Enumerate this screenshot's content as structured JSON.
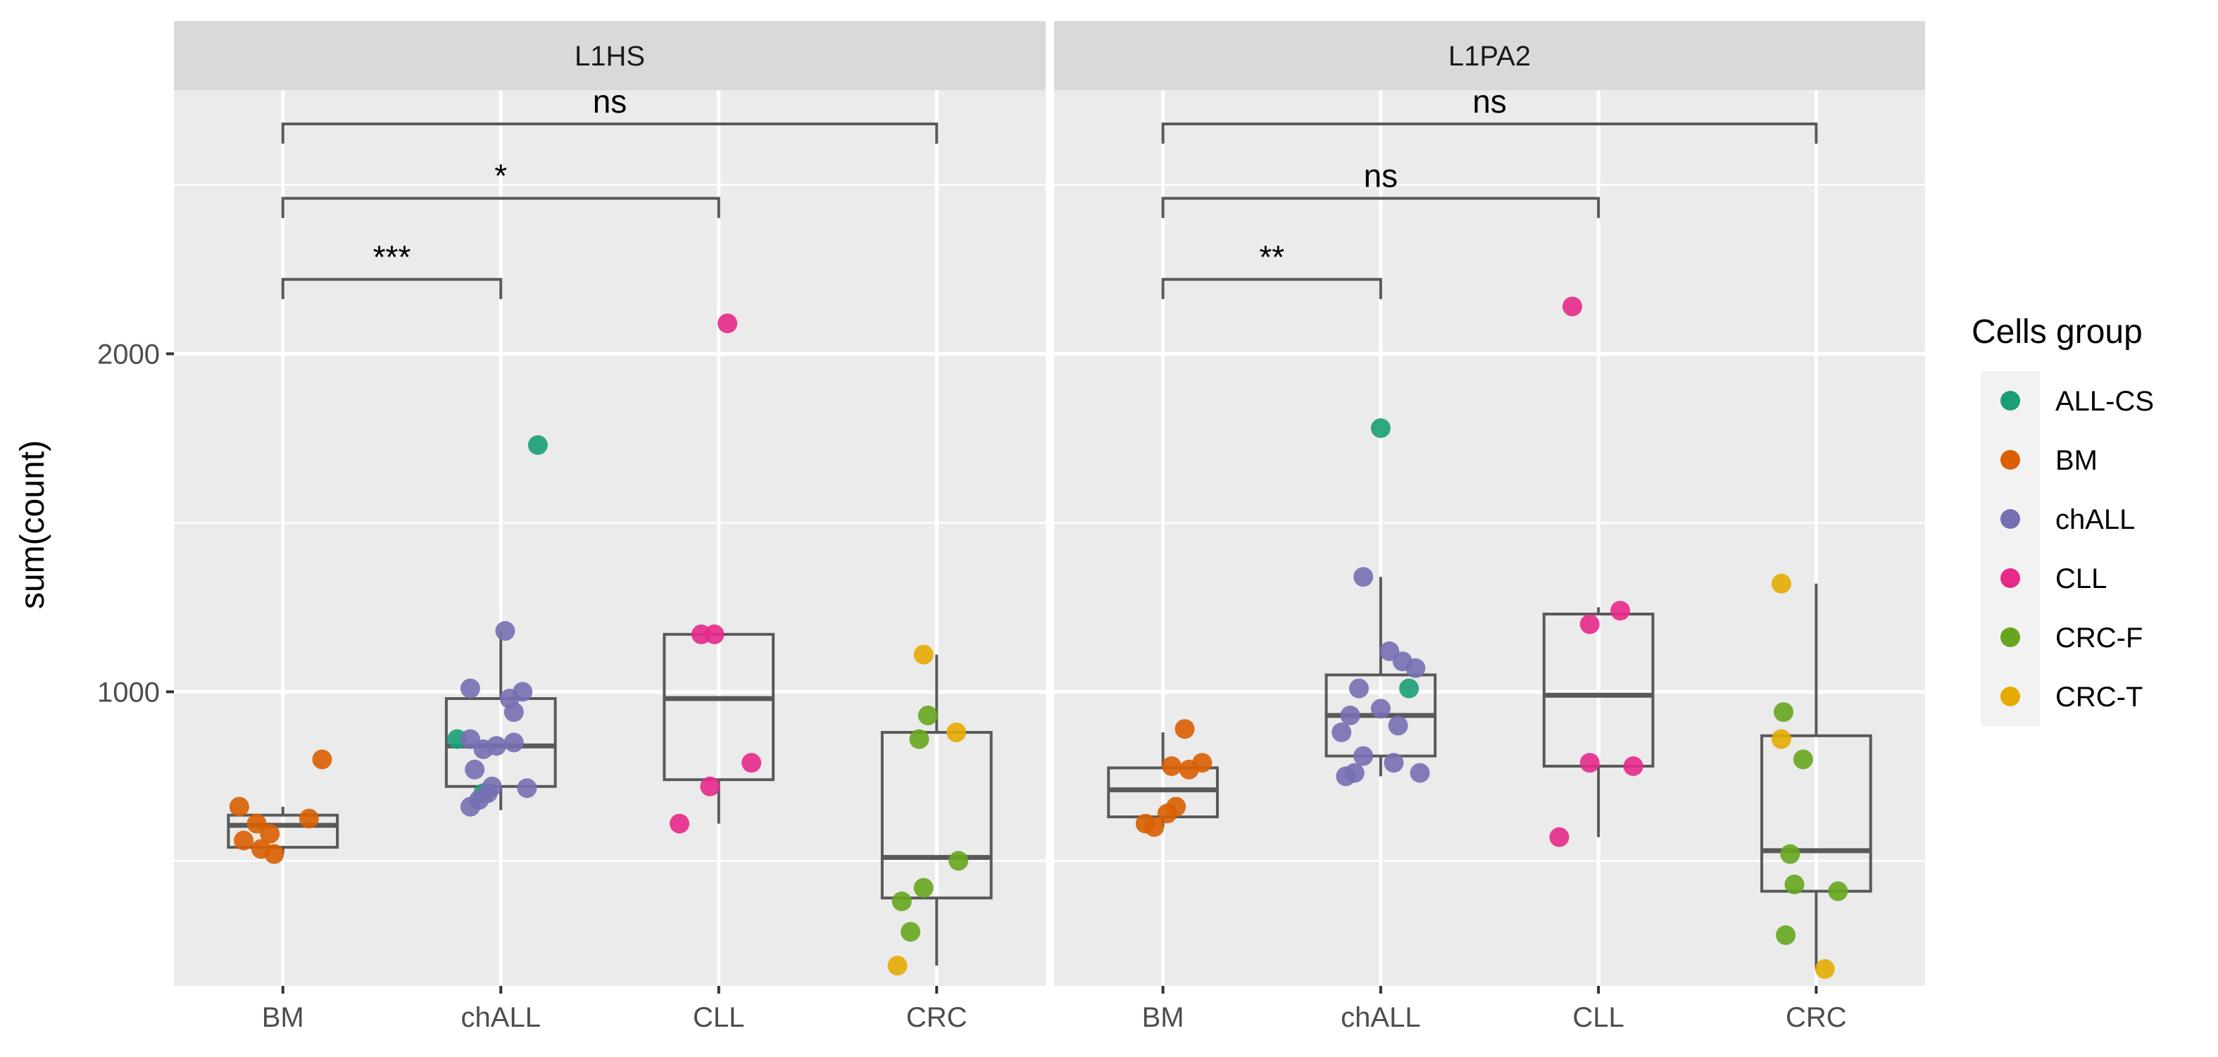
{
  "chart_data": {
    "type": "boxplot",
    "ylabel": "sum(count)",
    "y_ticks": [
      1000,
      2000
    ],
    "y_minor_ticks": [
      500,
      1500,
      2500
    ],
    "ylim": [
      130,
      2780
    ],
    "categories": [
      "BM",
      "chALL",
      "CLL",
      "CRC"
    ],
    "legend": {
      "title": "Cells group",
      "placement": "right",
      "entries": [
        {
          "label": "ALL-CS",
          "color": "#1B9E77"
        },
        {
          "label": "BM",
          "color": "#D95F02"
        },
        {
          "label": "chALL",
          "color": "#7570B3"
        },
        {
          "label": "CLL",
          "color": "#E7298A"
        },
        {
          "label": "CRC-F",
          "color": "#66A61E"
        },
        {
          "label": "CRC-T",
          "color": "#E6AB02"
        }
      ]
    },
    "panels": [
      {
        "title": "L1HS",
        "boxes": [
          {
            "category": "BM",
            "q1": 540,
            "median": 605,
            "q3": 635,
            "whisker_low": 520,
            "whisker_high": 660
          },
          {
            "category": "chALL",
            "q1": 720,
            "median": 840,
            "q3": 980,
            "whisker_low": 650,
            "whisker_high": 1180
          },
          {
            "category": "CLL",
            "q1": 740,
            "median": 980,
            "q3": 1170,
            "whisker_low": 610,
            "whisker_high": 1170
          },
          {
            "category": "CRC",
            "q1": 390,
            "median": 510,
            "q3": 880,
            "whisker_low": 190,
            "whisker_high": 1110
          }
        ],
        "points": [
          {
            "category": "BM",
            "group": "BM",
            "jitter": 0.18,
            "y": 800
          },
          {
            "category": "BM",
            "group": "BM",
            "jitter": -0.2,
            "y": 660
          },
          {
            "category": "BM",
            "group": "BM",
            "jitter": 0.12,
            "y": 625
          },
          {
            "category": "BM",
            "group": "BM",
            "jitter": -0.12,
            "y": 610
          },
          {
            "category": "BM",
            "group": "BM",
            "jitter": -0.06,
            "y": 580
          },
          {
            "category": "BM",
            "group": "BM",
            "jitter": -0.18,
            "y": 560
          },
          {
            "category": "BM",
            "group": "BM",
            "jitter": -0.1,
            "y": 535
          },
          {
            "category": "BM",
            "group": "BM",
            "jitter": -0.04,
            "y": 520
          },
          {
            "category": "chALL",
            "group": "ALL-CS",
            "jitter": 0.17,
            "y": 1730
          },
          {
            "category": "chALL",
            "group": "ALL-CS",
            "jitter": -0.2,
            "y": 860
          },
          {
            "category": "chALL",
            "group": "ALL-CS",
            "jitter": -0.08,
            "y": 700
          },
          {
            "category": "chALL",
            "group": "chALL",
            "jitter": 0.02,
            "y": 1180
          },
          {
            "category": "chALL",
            "group": "chALL",
            "jitter": -0.14,
            "y": 1010
          },
          {
            "category": "chALL",
            "group": "chALL",
            "jitter": 0.1,
            "y": 1000
          },
          {
            "category": "chALL",
            "group": "chALL",
            "jitter": 0.04,
            "y": 980
          },
          {
            "category": "chALL",
            "group": "chALL",
            "jitter": 0.06,
            "y": 940
          },
          {
            "category": "chALL",
            "group": "chALL",
            "jitter": -0.14,
            "y": 860
          },
          {
            "category": "chALL",
            "group": "chALL",
            "jitter": 0.06,
            "y": 850
          },
          {
            "category": "chALL",
            "group": "chALL",
            "jitter": -0.02,
            "y": 840
          },
          {
            "category": "chALL",
            "group": "chALL",
            "jitter": -0.08,
            "y": 830
          },
          {
            "category": "chALL",
            "group": "chALL",
            "jitter": -0.12,
            "y": 770
          },
          {
            "category": "chALL",
            "group": "chALL",
            "jitter": -0.04,
            "y": 720
          },
          {
            "category": "chALL",
            "group": "chALL",
            "jitter": 0.12,
            "y": 715
          },
          {
            "category": "chALL",
            "group": "chALL",
            "jitter": -0.06,
            "y": 700
          },
          {
            "category": "chALL",
            "group": "chALL",
            "jitter": -0.1,
            "y": 680
          },
          {
            "category": "chALL",
            "group": "chALL",
            "jitter": -0.14,
            "y": 660
          },
          {
            "category": "CLL",
            "group": "CLL",
            "jitter": 0.04,
            "y": 2090
          },
          {
            "category": "CLL",
            "group": "CLL",
            "jitter": -0.08,
            "y": 1170
          },
          {
            "category": "CLL",
            "group": "CLL",
            "jitter": -0.02,
            "y": 1170
          },
          {
            "category": "CLL",
            "group": "CLL",
            "jitter": 0.15,
            "y": 790
          },
          {
            "category": "CLL",
            "group": "CLL",
            "jitter": -0.04,
            "y": 720
          },
          {
            "category": "CLL",
            "group": "CLL",
            "jitter": -0.18,
            "y": 610
          },
          {
            "category": "CRC",
            "group": "CRC-T",
            "jitter": -0.06,
            "y": 1110
          },
          {
            "category": "CRC",
            "group": "CRC-T",
            "jitter": 0.09,
            "y": 880
          },
          {
            "category": "CRC",
            "group": "CRC-T",
            "jitter": -0.18,
            "y": 190
          },
          {
            "category": "CRC",
            "group": "CRC-F",
            "jitter": -0.04,
            "y": 930
          },
          {
            "category": "CRC",
            "group": "CRC-F",
            "jitter": -0.08,
            "y": 860
          },
          {
            "category": "CRC",
            "group": "CRC-F",
            "jitter": 0.1,
            "y": 500
          },
          {
            "category": "CRC",
            "group": "CRC-F",
            "jitter": -0.06,
            "y": 420
          },
          {
            "category": "CRC",
            "group": "CRC-F",
            "jitter": -0.16,
            "y": 380
          },
          {
            "category": "CRC",
            "group": "CRC-F",
            "jitter": -0.12,
            "y": 290
          }
        ],
        "comparisons": [
          {
            "from": "BM",
            "to": "chALL",
            "label": "***",
            "y": 2220
          },
          {
            "from": "BM",
            "to": "CLL",
            "label": "*",
            "y": 2460
          },
          {
            "from": "BM",
            "to": "CRC",
            "label": "ns",
            "y": 2680
          }
        ]
      },
      {
        "title": "L1PA2",
        "boxes": [
          {
            "category": "BM",
            "q1": 630,
            "median": 710,
            "q3": 775,
            "whisker_low": 600,
            "whisker_high": 880
          },
          {
            "category": "chALL",
            "q1": 810,
            "median": 930,
            "q3": 1050,
            "whisker_low": 750,
            "whisker_high": 1340
          },
          {
            "category": "CLL",
            "q1": 780,
            "median": 990,
            "q3": 1230,
            "whisker_low": 570,
            "whisker_high": 1250
          },
          {
            "category": "CRC",
            "q1": 410,
            "median": 530,
            "q3": 870,
            "whisker_low": 180,
            "whisker_high": 1320
          }
        ],
        "points": [
          {
            "category": "BM",
            "group": "BM",
            "jitter": 0.1,
            "y": 890
          },
          {
            "category": "BM",
            "group": "BM",
            "jitter": 0.18,
            "y": 790
          },
          {
            "category": "BM",
            "group": "BM",
            "jitter": 0.04,
            "y": 780
          },
          {
            "category": "BM",
            "group": "BM",
            "jitter": 0.12,
            "y": 770
          },
          {
            "category": "BM",
            "group": "BM",
            "jitter": 0.06,
            "y": 660
          },
          {
            "category": "BM",
            "group": "BM",
            "jitter": 0.02,
            "y": 640
          },
          {
            "category": "BM",
            "group": "BM",
            "jitter": -0.08,
            "y": 610
          },
          {
            "category": "BM",
            "group": "BM",
            "jitter": -0.04,
            "y": 600
          },
          {
            "category": "chALL",
            "group": "ALL-CS",
            "jitter": 0.0,
            "y": 1780
          },
          {
            "category": "chALL",
            "group": "ALL-CS",
            "jitter": 0.13,
            "y": 1010
          },
          {
            "category": "chALL",
            "group": "chALL",
            "jitter": -0.08,
            "y": 1340
          },
          {
            "category": "chALL",
            "group": "chALL",
            "jitter": 0.04,
            "y": 1120
          },
          {
            "category": "chALL",
            "group": "chALL",
            "jitter": 0.1,
            "y": 1090
          },
          {
            "category": "chALL",
            "group": "chALL",
            "jitter": 0.16,
            "y": 1070
          },
          {
            "category": "chALL",
            "group": "chALL",
            "jitter": -0.1,
            "y": 1010
          },
          {
            "category": "chALL",
            "group": "chALL",
            "jitter": 0.0,
            "y": 950
          },
          {
            "category": "chALL",
            "group": "chALL",
            "jitter": -0.14,
            "y": 930
          },
          {
            "category": "chALL",
            "group": "chALL",
            "jitter": 0.08,
            "y": 900
          },
          {
            "category": "chALL",
            "group": "chALL",
            "jitter": -0.18,
            "y": 880
          },
          {
            "category": "chALL",
            "group": "chALL",
            "jitter": -0.08,
            "y": 810
          },
          {
            "category": "chALL",
            "group": "chALL",
            "jitter": 0.06,
            "y": 790
          },
          {
            "category": "chALL",
            "group": "chALL",
            "jitter": -0.12,
            "y": 760
          },
          {
            "category": "chALL",
            "group": "chALL",
            "jitter": 0.18,
            "y": 760
          },
          {
            "category": "chALL",
            "group": "chALL",
            "jitter": -0.16,
            "y": 750
          },
          {
            "category": "CLL",
            "group": "CLL",
            "jitter": -0.12,
            "y": 2140
          },
          {
            "category": "CLL",
            "group": "CLL",
            "jitter": 0.1,
            "y": 1240
          },
          {
            "category": "CLL",
            "group": "CLL",
            "jitter": -0.04,
            "y": 1200
          },
          {
            "category": "CLL",
            "group": "CLL",
            "jitter": -0.04,
            "y": 790
          },
          {
            "category": "CLL",
            "group": "CLL",
            "jitter": 0.16,
            "y": 780
          },
          {
            "category": "CLL",
            "group": "CLL",
            "jitter": -0.18,
            "y": 570
          },
          {
            "category": "CRC",
            "group": "CRC-T",
            "jitter": -0.16,
            "y": 1320
          },
          {
            "category": "CRC",
            "group": "CRC-T",
            "jitter": -0.16,
            "y": 860
          },
          {
            "category": "CRC",
            "group": "CRC-T",
            "jitter": 0.04,
            "y": 180
          },
          {
            "category": "CRC",
            "group": "CRC-F",
            "jitter": -0.15,
            "y": 940
          },
          {
            "category": "CRC",
            "group": "CRC-F",
            "jitter": -0.06,
            "y": 800
          },
          {
            "category": "CRC",
            "group": "CRC-F",
            "jitter": -0.12,
            "y": 520
          },
          {
            "category": "CRC",
            "group": "CRC-F",
            "jitter": -0.1,
            "y": 430
          },
          {
            "category": "CRC",
            "group": "CRC-F",
            "jitter": 0.1,
            "y": 410
          },
          {
            "category": "CRC",
            "group": "CRC-F",
            "jitter": -0.14,
            "y": 280
          }
        ],
        "comparisons": [
          {
            "from": "BM",
            "to": "chALL",
            "label": "**",
            "y": 2220
          },
          {
            "from": "BM",
            "to": "CLL",
            "label": "ns",
            "y": 2460
          },
          {
            "from": "BM",
            "to": "CRC",
            "label": "ns",
            "y": 2680
          }
        ]
      }
    ]
  }
}
